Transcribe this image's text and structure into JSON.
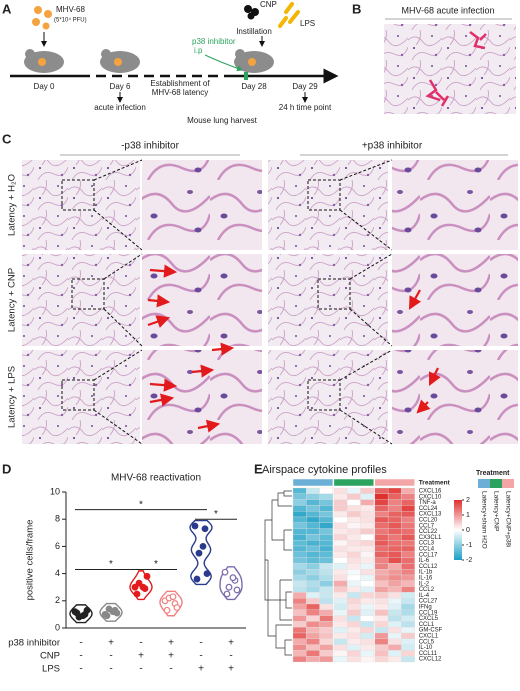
{
  "panel_labels": [
    "A",
    "B",
    "C",
    "D",
    "E"
  ],
  "schematic": {
    "virus": "MHV-68",
    "dose": "(5*10⁴ PFU)",
    "day0": "Day 0",
    "day6": "Day 6",
    "acute": "acute infection",
    "latency": [
      "Establishment of",
      "MHV-68 latency"
    ],
    "inhibitor": "p38 inhibitor",
    "route": "i.p",
    "cnp": "CNP",
    "lps": "LPS",
    "instillation": "Instillation",
    "day28": "Day 28",
    "day29": "Day 29",
    "timepoint": "24 h time point",
    "harvest": "Mouse lung harvest"
  },
  "acute_image": {
    "title": "MHV-68 acute infection"
  },
  "micrographs": {
    "columns": [
      "-p38 inhibitor",
      "+p38 inhibitor"
    ],
    "rows": [
      "Latency + H₂O",
      "Latency + CNP",
      "Latency + LPS"
    ]
  },
  "chart_data": [
    {
      "type": "violin",
      "title": "MHV-68 reactivation",
      "y_label": "positive cells/frame",
      "ylim": [
        0,
        10
      ],
      "yticks": [
        0,
        2,
        4,
        6,
        8,
        10
      ],
      "groups": [
        {
          "color": "#222222",
          "point_fill": true,
          "values": [
            1.2,
            1.0,
            0.8,
            1.3,
            1.1,
            0.9
          ]
        },
        {
          "color": "#888888",
          "point_fill": true,
          "values": [
            1.0,
            1.3,
            1.4,
            1.1,
            0.9,
            1.2
          ]
        },
        {
          "color": "#e41a1c",
          "point_fill": true,
          "values": [
            3.0,
            2.9,
            3.3,
            3.8,
            2.5,
            3.0
          ]
        },
        {
          "color": "#f08080",
          "point_fill": false,
          "values": [
            2.0,
            1.8,
            2.2,
            1.5,
            1.3,
            2.3
          ]
        },
        {
          "color": "#2a3a8c",
          "point_fill": true,
          "values": [
            7.5,
            7.3,
            5.5,
            4.0,
            3.6,
            6.0
          ]
        },
        {
          "color": "#7b68ae",
          "point_fill": false,
          "values": [
            4.1,
            3.5,
            3.0,
            2.8,
            2.5,
            3.7
          ]
        }
      ],
      "conditions": [
        {
          "name": "p38 inhibitor",
          "values": [
            "-",
            "+",
            "-",
            "+",
            "-",
            "+"
          ]
        },
        {
          "name": "CNP",
          "values": [
            "-",
            "-",
            "+",
            "+",
            "-",
            "-"
          ]
        },
        {
          "name": "LPS",
          "values": [
            "-",
            "-",
            "-",
            "-",
            "+",
            "+"
          ]
        }
      ],
      "significance": [
        {
          "groups": [
            0,
            4
          ],
          "label": "*"
        },
        {
          "groups": [
            0,
            2
          ],
          "label": "*"
        },
        {
          "groups": [
            2,
            3
          ],
          "label": "*"
        },
        {
          "groups": [
            4,
            5
          ],
          "label": "*"
        }
      ]
    },
    {
      "type": "heatmap",
      "title": "Airspace cytokine profiles",
      "annotation_label": "Treatment",
      "legend_title": "Treatment",
      "groups": [
        {
          "name": "Latency+sham H2O",
          "color": "#6baed6",
          "columns": 3
        },
        {
          "name": "Latency+CNP",
          "color": "#2ca25f",
          "columns": 3
        },
        {
          "name": "Latency+CNP+p38i",
          "color": "#f4a6a6",
          "columns": 3
        }
      ],
      "colorbar": {
        "lim": [
          -2,
          2
        ],
        "ticks": [
          2,
          1,
          0,
          -1,
          -2
        ],
        "colors": [
          "#1b9fc4",
          "#ffffff",
          "#e0302e"
        ]
      },
      "rows": [
        "CXCL16",
        "CXCL10",
        "TNF-a",
        "CCL24",
        "CXCL13",
        "CCL20",
        "CCL7",
        "CCL22",
        "CX3CL1",
        "CCL3",
        "CCL4",
        "CCL17",
        "IL-6",
        "CCL12",
        "IL-1b",
        "IL-16",
        "IL-2",
        "CCL2",
        "IL-4",
        "CCL27",
        "IFNg",
        "CCL19",
        "CXCL5",
        "CCL1",
        "GM-CSF",
        "CXCL1",
        "CCL5",
        "IL-10",
        "CCL11",
        "CXCL12"
      ],
      "values": [
        [
          -1.5,
          -0.5,
          0,
          0.3,
          -0.2,
          0.5,
          1.5,
          1.8,
          0.8
        ],
        [
          -1.2,
          -1,
          -0.8,
          0.2,
          0.5,
          -0.3,
          2,
          1.5,
          1.2
        ],
        [
          -1,
          -1.5,
          -1.2,
          0.5,
          0,
          0.8,
          1.8,
          1.2,
          1.5
        ],
        [
          -1.5,
          -1.2,
          -1.5,
          0.5,
          0.3,
          0.2,
          1.5,
          1.2,
          1.8
        ],
        [
          -1.8,
          -1.5,
          -1.2,
          0.2,
          0.5,
          0.3,
          1.2,
          1.5,
          1.6
        ],
        [
          -1.5,
          -1.8,
          -1.5,
          0,
          0.2,
          0.3,
          1.6,
          1.5,
          1.2
        ],
        [
          -1.2,
          -1.5,
          -1.8,
          0.3,
          0.1,
          0.2,
          1.4,
          1.6,
          1.3
        ],
        [
          -1.5,
          -1.5,
          -1.2,
          0.2,
          0.3,
          0.5,
          1.3,
          1.5,
          1.4
        ],
        [
          -1.6,
          -1.2,
          -1.4,
          0.4,
          0.2,
          0,
          1.5,
          1.3,
          1.6
        ],
        [
          -1.4,
          -1.6,
          -1.5,
          0.1,
          0.3,
          0.4,
          1.6,
          1.4,
          1.3
        ],
        [
          -1.5,
          -1.3,
          -1.6,
          0.3,
          0.2,
          0.2,
          1.4,
          1.5,
          1.5
        ],
        [
          -1.3,
          -1.5,
          -1.4,
          0.2,
          0.4,
          0.1,
          1.5,
          1.6,
          1.2
        ],
        [
          -1.2,
          -1.4,
          -1.3,
          0,
          0.3,
          0.2,
          1.2,
          1.7,
          1.4
        ],
        [
          -0.8,
          -1,
          -0.5,
          -0.3,
          0.2,
          -0.2,
          1.2,
          0.8,
          1.4
        ],
        [
          -1,
          -0.8,
          -0.6,
          0.2,
          -0.1,
          0.3,
          0.8,
          1.0,
          1.2
        ],
        [
          -0.8,
          -1,
          -0.7,
          0.3,
          0,
          -0.2,
          0.9,
          1.1,
          1.0
        ],
        [
          -0.5,
          -0.7,
          -1,
          0.8,
          -0.2,
          0,
          0.6,
          0.9,
          0.7
        ],
        [
          -0.6,
          -0.8,
          -0.5,
          0.5,
          0.2,
          -0.3,
          0.9,
          0.7,
          1.2
        ],
        [
          0.8,
          -0.3,
          -0.5,
          0.2,
          -0.5,
          0.4,
          0.5,
          0.3,
          -0.4
        ],
        [
          1.2,
          0.5,
          -0.6,
          -0.3,
          0.4,
          0.2,
          0.3,
          -0.2,
          -0.5
        ],
        [
          0.9,
          1.5,
          0.3,
          -0.4,
          0.3,
          -0.2,
          0.2,
          -0.3,
          -0.8
        ],
        [
          0.6,
          1.2,
          0.8,
          -0.2,
          0.5,
          -0.3,
          0.6,
          -0.5,
          -0.7
        ],
        [
          1.0,
          0.4,
          1.3,
          0.3,
          -0.5,
          0,
          0.2,
          -0.6,
          -0.4
        ],
        [
          0.5,
          1.1,
          0.9,
          0.2,
          0.4,
          -0.5,
          0.4,
          -0.3,
          -0.6
        ],
        [
          1.3,
          0.7,
          0.5,
          -0.3,
          0.2,
          0.4,
          -0.5,
          0.3,
          -0.2
        ],
        [
          1.5,
          0.9,
          0.6,
          0.2,
          0.3,
          -0.4,
          1.0,
          -0.2,
          0.5
        ],
        [
          0.8,
          1.2,
          0.4,
          -0.5,
          0.2,
          0.3,
          1.2,
          0.3,
          -0.3
        ],
        [
          1.1,
          0.6,
          0.9,
          0.3,
          -0.3,
          0.2,
          0.5,
          0.8,
          -0.4
        ],
        [
          0.7,
          1.3,
          0.5,
          0.1,
          0.4,
          -0.2,
          0.6,
          -0.3,
          0.4
        ],
        [
          1.2,
          0.8,
          1.0,
          -0.2,
          0.3,
          0.1,
          0.4,
          0.2,
          -0.5
        ]
      ]
    }
  ]
}
